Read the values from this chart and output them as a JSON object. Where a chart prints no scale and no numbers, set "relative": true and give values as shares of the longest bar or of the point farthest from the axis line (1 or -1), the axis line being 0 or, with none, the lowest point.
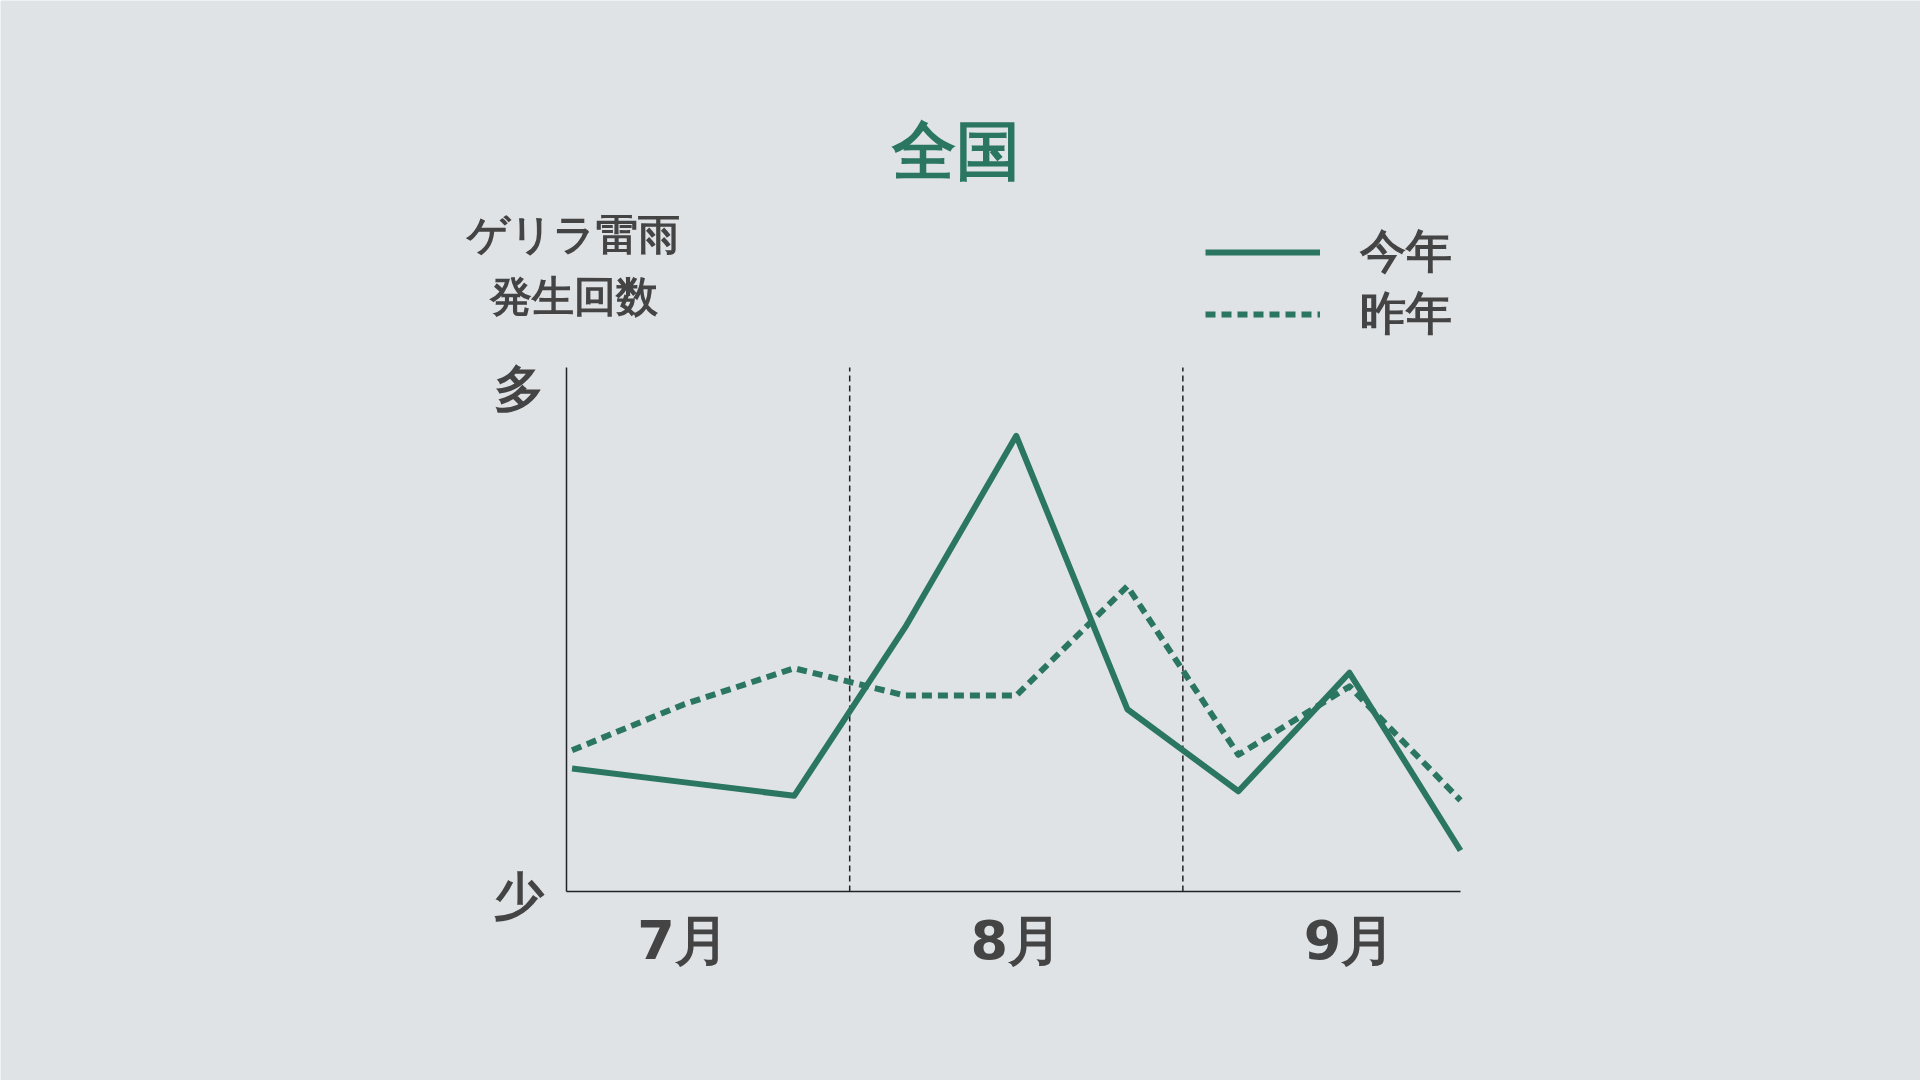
{
  "chart_data": {
    "type": "line",
    "title": "全国",
    "ylabel": "ゲリラ雷雨発生回数",
    "relative": true,
    "categories": [
      null,
      "7月",
      null,
      null,
      "8月",
      null,
      null,
      "9月",
      null
    ],
    "series": [
      {
        "name": "今年",
        "color": "#2b7661",
        "line_style": "solid",
        "values": [
          0.27,
          0.24,
          0.21,
          0.58,
          1,
          0.4,
          0.22,
          0.48,
          0.09
        ]
      },
      {
        "name": "昨年",
        "color": "#2b7661",
        "line_style": "dashed",
        "values": [
          0.31,
          0.41,
          0.49,
          0.43,
          0.43,
          0.67,
          0.3,
          0.45,
          0.2
        ]
      }
    ],
    "annotations": [
      "多",
      "少"
    ],
    "legend": "top right",
    "marker": "none"
  }
}
